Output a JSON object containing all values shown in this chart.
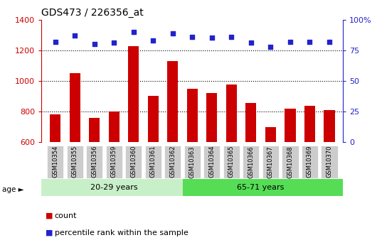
{
  "title": "GDS473 / 226356_at",
  "samples": [
    "GSM10354",
    "GSM10355",
    "GSM10356",
    "GSM10359",
    "GSM10360",
    "GSM10361",
    "GSM10362",
    "GSM10363",
    "GSM10364",
    "GSM10365",
    "GSM10366",
    "GSM10367",
    "GSM10368",
    "GSM10369",
    "GSM10370"
  ],
  "counts": [
    780,
    1050,
    760,
    800,
    1225,
    900,
    1130,
    950,
    920,
    975,
    855,
    700,
    820,
    835,
    810
  ],
  "percentile": [
    82,
    87,
    80,
    81,
    90,
    83,
    89,
    86,
    85,
    86,
    81,
    78,
    82,
    82,
    82
  ],
  "group1_label": "20-29 years",
  "group2_label": "65-71 years",
  "group1_count": 7,
  "group2_count": 8,
  "ylim_left": [
    600,
    1400
  ],
  "ylim_right": [
    0,
    100
  ],
  "yticks_left": [
    600,
    800,
    1000,
    1200,
    1400
  ],
  "yticks_right": [
    0,
    25,
    50,
    75,
    100
  ],
  "ytick_labels_right": [
    "0",
    "25",
    "50",
    "75",
    "100%"
  ],
  "bar_color": "#cc0000",
  "dot_color": "#2222cc",
  "age_band_bg1": "#c8f0c8",
  "age_band_bg2": "#55dd55",
  "grid_color": "#000000",
  "tick_bg": "#cccccc",
  "legend_count_label": "count",
  "legend_pct_label": "percentile rank within the sample"
}
